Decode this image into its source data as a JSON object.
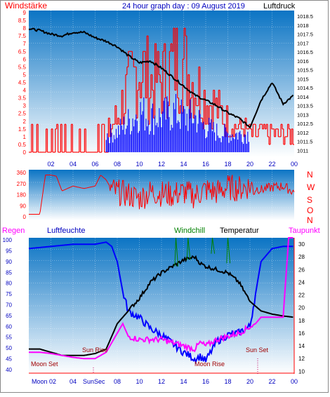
{
  "header": {
    "left_label": "Windstärke",
    "title": "24 hour graph day : 09 August 2019",
    "right_label": "Luftdruck"
  },
  "wind_dir": {
    "letters": [
      "N",
      "W",
      "S",
      "O",
      "N"
    ]
  },
  "bottom_header": {
    "rain": "Regen",
    "humidity": "Luftfeuchte",
    "windchill": "Windchill",
    "temperature": "Temperatur",
    "dewpoint": "Taupunkt"
  },
  "annotations": {
    "moon_set": "Moon Set",
    "sun_rise": "Sun Rise",
    "moon_rise": "Moon Rise",
    "sun_set": "Sun Set",
    "moon_bottom": "Moon 02",
    "sun_bottom": "SunSec"
  },
  "colors": {
    "wind_speed": "#ff0000",
    "wind_gust": "#0000ff",
    "pressure": "#000000",
    "wind_direction": "#ff0000",
    "humidity": "#0000ff",
    "temperature": "#000000",
    "dewpoint": "#ff00ff",
    "windchill": "#008000",
    "rain": "#ff0000",
    "bg_top": "#0b74c4",
    "bg_bottom": "#ffffff"
  },
  "chart_data": [
    {
      "type": "line",
      "title": "24 hour graph day : 09 August 2019",
      "x_tick_labels": [
        "02",
        "04",
        "06",
        "08",
        "10",
        "12",
        "14",
        "16",
        "18",
        "20",
        "22",
        "00"
      ],
      "left_axis": {
        "label": "Windstärke",
        "ticks": [
          "0",
          "0.5",
          "1",
          "1.5",
          "2",
          "2.5",
          "3",
          "3.5",
          "4",
          "4.5",
          "5",
          "5.5",
          "6",
          "6.5",
          "7",
          "7.5",
          "8",
          "8.5",
          "9"
        ],
        "ylim": [
          0,
          9
        ]
      },
      "right_axis": {
        "label": "Luftdruck",
        "ticks": [
          "1011",
          "1011.5",
          "1012",
          "1012.5",
          "1013",
          "1013.5",
          "1014",
          "1014.5",
          "1015",
          "1015.5",
          "1016",
          "1016.5",
          "1017",
          "1017.5",
          "1018",
          "1018.5"
        ],
        "ylim": [
          1010.9,
          1018.7
        ]
      },
      "pressure": {
        "hours": [
          0,
          1,
          2,
          3,
          4,
          5,
          6,
          7,
          8,
          9,
          10,
          11,
          12,
          13,
          14,
          15,
          16,
          17,
          18,
          19,
          20,
          21,
          22,
          23,
          24
        ],
        "values": [
          1017.8,
          1017.7,
          1017.5,
          1017.4,
          1017.6,
          1017.6,
          1017.3,
          1017.1,
          1016.8,
          1016.3,
          1015.9,
          1016.0,
          1015.6,
          1015.1,
          1014.6,
          1014.1,
          1013.8,
          1013.5,
          1013.1,
          1012.8,
          1012.3,
          1013.8,
          1014.8,
          1013.6,
          1014.1
        ]
      },
      "wind_speed_envelope": {
        "hours": [
          0,
          1,
          2,
          3,
          4,
          5,
          6,
          7,
          8,
          9,
          10,
          11,
          12,
          13,
          14,
          15,
          16,
          17,
          18,
          19,
          20,
          21,
          22,
          23,
          24
        ],
        "values": [
          1.8,
          1.8,
          1.5,
          1.8,
          1.8,
          1.5,
          1.8,
          1.8,
          3.5,
          6.5,
          9,
          7,
          7.5,
          9,
          9,
          7,
          5.5,
          4.5,
          3,
          2.5,
          2,
          2,
          2,
          1.8,
          1.8
        ]
      },
      "wind_gust_envelope": {
        "hours": [
          7,
          8,
          9,
          10,
          11,
          12,
          13,
          14,
          15,
          16,
          17,
          18,
          19,
          20
        ],
        "values": [
          1.8,
          2,
          3,
          4,
          3.5,
          3.5,
          4,
          3.5,
          3.5,
          2.5,
          2,
          1.8,
          1.8,
          1.8
        ]
      }
    },
    {
      "type": "line",
      "title": "",
      "y_ticks": [
        "0",
        "90",
        "180",
        "270",
        "360"
      ],
      "ylim": [
        0,
        360
      ],
      "right_letters": [
        "N",
        "W",
        "S",
        "O",
        "N"
      ],
      "wind_direction": {
        "hours": [
          0,
          1,
          1.5,
          2,
          2.5,
          3,
          3.5,
          4,
          5,
          6,
          6.5,
          7,
          7.5,
          8,
          9,
          10,
          11,
          12,
          13,
          14,
          15,
          16,
          17,
          18,
          19,
          20,
          21,
          22,
          23,
          24
        ],
        "values": [
          20,
          20,
          340,
          340,
          330,
          210,
          230,
          250,
          230,
          250,
          340,
          300,
          220,
          200,
          180,
          150,
          200,
          190,
          180,
          200,
          170,
          220,
          200,
          240,
          230,
          250,
          220,
          240,
          250,
          200
        ]
      }
    },
    {
      "type": "line",
      "title": "",
      "left_axis": {
        "label": "Luftfeuchte",
        "ticks": [
          "40",
          "45",
          "50",
          "55",
          "60",
          "65",
          "70",
          "75",
          "80",
          "85",
          "90",
          "95",
          "100"
        ],
        "ylim": [
          38,
          101
        ]
      },
      "right_axis": {
        "label": "Temperatur",
        "ticks": [
          "10",
          "12",
          "14",
          "16",
          "18",
          "20",
          "22",
          "24",
          "26",
          "28",
          "30"
        ],
        "ylim": [
          9.6,
          31
        ]
      },
      "humidity": {
        "hours": [
          0,
          2,
          4,
          6,
          7,
          7.5,
          8,
          8.5,
          9,
          10,
          11,
          12,
          13,
          14,
          15,
          15.5,
          16,
          17,
          18,
          19,
          20,
          21,
          22,
          23,
          24
        ],
        "values": [
          96,
          97,
          98,
          98,
          99,
          97,
          90,
          76,
          67,
          64,
          59,
          56,
          52,
          48,
          45,
          46,
          44,
          53,
          56,
          57,
          60,
          90,
          96,
          97,
          97
        ]
      },
      "temperature": {
        "hours": [
          0,
          1,
          2,
          3,
          4,
          5,
          6,
          7,
          8,
          9,
          10,
          11,
          12,
          13,
          14,
          15,
          15.5,
          16,
          17,
          18,
          19,
          20,
          21,
          22,
          23,
          24
        ],
        "values": [
          13.5,
          13.5,
          13.0,
          12.5,
          12.5,
          12.5,
          12.8,
          13.5,
          17.5,
          19.5,
          21.5,
          24.0,
          25.5,
          26.5,
          27.5,
          28.0,
          27.0,
          26.5,
          26.0,
          25.5,
          24.0,
          21.0,
          19.5,
          19.0,
          18.7,
          18.5
        ]
      },
      "dewpoint": {
        "hours": [
          0,
          1,
          2,
          3,
          4,
          5,
          6,
          6.5,
          7,
          8,
          8.5,
          9,
          10,
          11,
          12,
          13,
          14,
          15,
          15.5,
          16,
          17,
          18,
          19,
          20,
          20.5,
          21,
          22,
          23,
          23.5,
          24
        ],
        "values": [
          13.0,
          13.0,
          12.8,
          12.5,
          12.2,
          12.0,
          12.0,
          12.5,
          13.0,
          16.0,
          17.5,
          15.5,
          15.0,
          15.0,
          15.0,
          14.5,
          14.0,
          13.5,
          14.5,
          14.0,
          15.0,
          15.5,
          16.0,
          17.0,
          17.5,
          18.5,
          18.5,
          18.5,
          31.0,
          31.0
        ]
      },
      "windchill": {
        "hours": [
          13.2,
          13.3,
          13.5,
          14.3,
          14.4,
          14.6,
          16.5,
          16.6,
          16.8,
          17.9,
          18.0,
          18.2
        ],
        "values": [
          26.5,
          31.0,
          26.5,
          27.5,
          31.0,
          27.5,
          28.5,
          31.0,
          28.5,
          27.0,
          31.0,
          27.0
        ]
      }
    }
  ]
}
